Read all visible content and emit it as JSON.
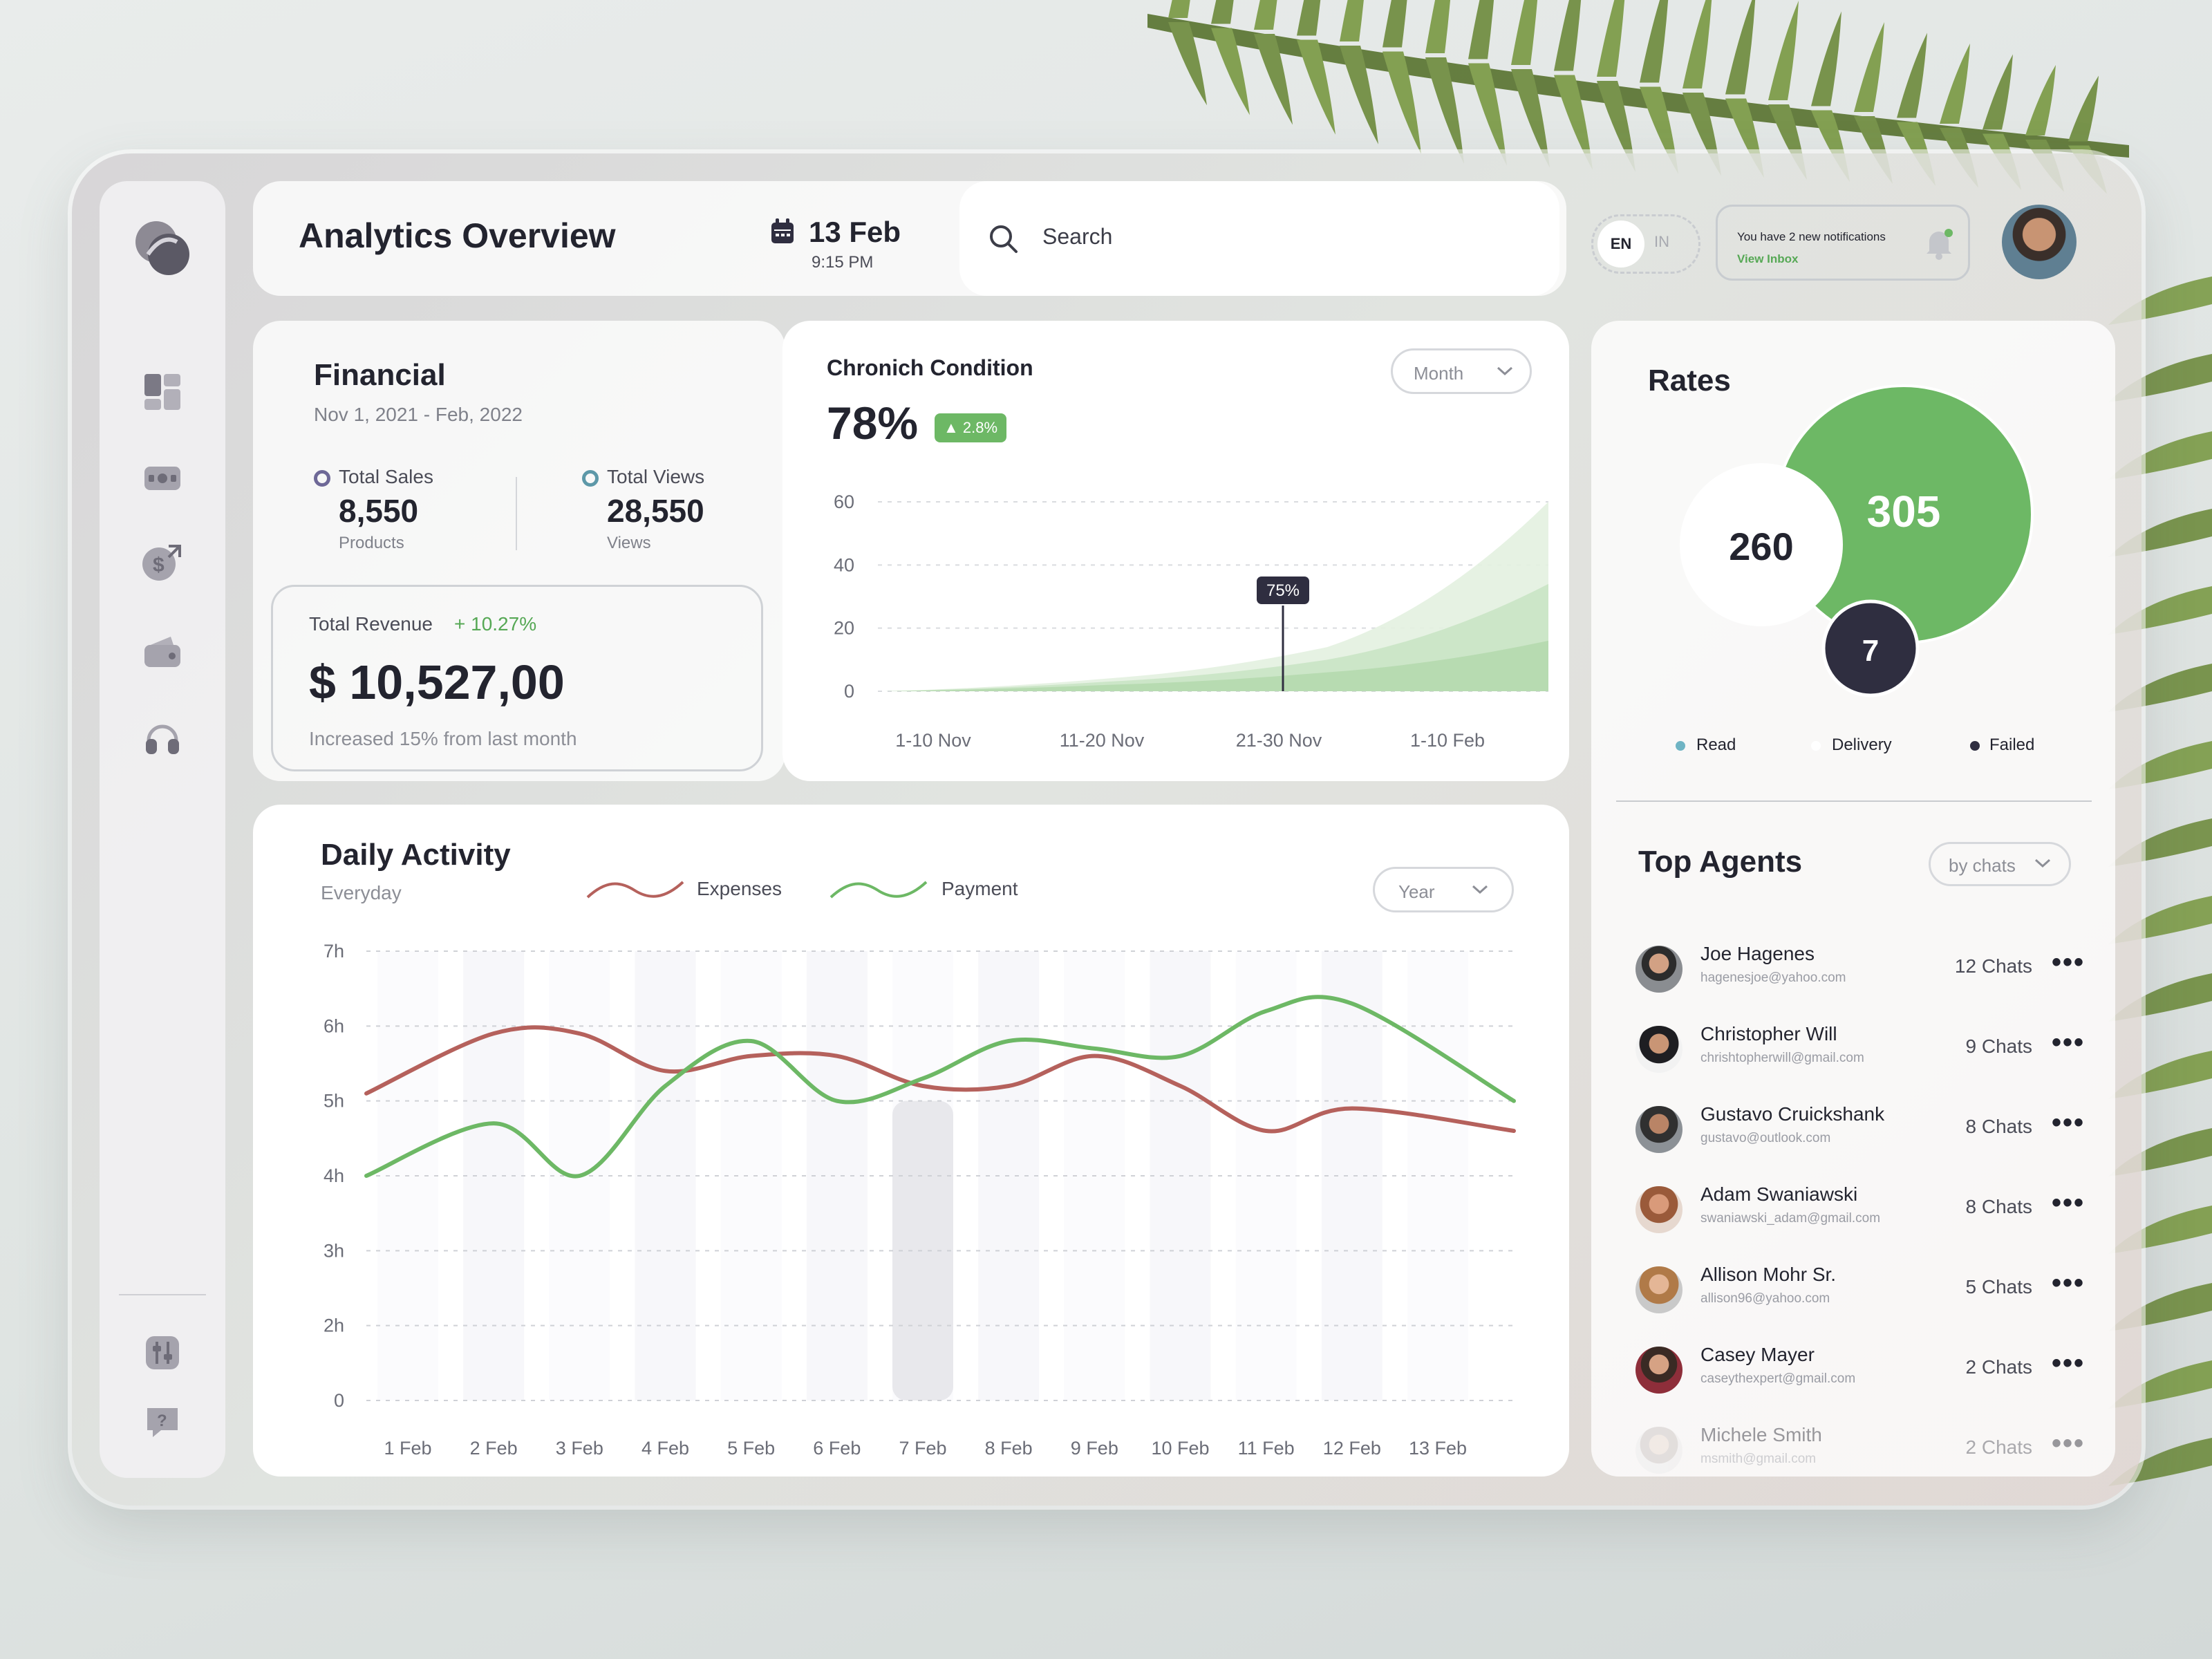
{
  "header": {
    "title": "Analytics Overview",
    "date": "13 Feb",
    "time": "9:15 PM",
    "search_placeholder": "Search",
    "lang_active": "EN",
    "lang_inactive": "IN",
    "notification_text": "You have 2 new notifications",
    "notification_link": "View Inbox"
  },
  "sidebar": {
    "items": [
      {
        "icon": "dashboard-icon"
      },
      {
        "icon": "wallet-cash-icon"
      },
      {
        "icon": "dollar-transfer-icon"
      },
      {
        "icon": "purse-icon"
      },
      {
        "icon": "headphones-icon"
      },
      {
        "icon": "settings-sliders-icon"
      },
      {
        "icon": "help-icon"
      }
    ]
  },
  "financial": {
    "title": "Financial",
    "period": "Nov 1, 2021 - Feb, 2022",
    "total_sales_label": "Total Sales",
    "total_sales_value": "8,550",
    "total_sales_unit": "Products",
    "total_views_label": "Total Views",
    "total_views_value": "28,550",
    "total_views_unit": "Views",
    "revenue_label": "Total Revenue",
    "revenue_delta": "+ 10.27%",
    "revenue_value": "$ 10,527,00",
    "revenue_note": "Increased 15% from last month"
  },
  "chronic": {
    "title": "Chronich Condition",
    "value": "78%",
    "badge": "▲ 2.8%",
    "dropdown": "Month",
    "tooltip": "75%"
  },
  "rates": {
    "title": "Rates",
    "bubbles": {
      "green": "305",
      "white": "260",
      "dark": "7"
    },
    "legend": [
      "Read",
      "Delivery",
      "Failed"
    ]
  },
  "agents": {
    "title": "Top Agents",
    "filter": "by chats",
    "list": [
      {
        "name": "Joe Hagenes",
        "email": "hagenesjoe@yahoo.com",
        "chats": "12 Chats"
      },
      {
        "name": "Christopher Will",
        "email": "chrishtopherwill@gmail.com",
        "chats": "9 Chats"
      },
      {
        "name": "Gustavo Cruickshank",
        "email": "gustavo@outlook.com",
        "chats": "8 Chats"
      },
      {
        "name": "Adam Swaniawski",
        "email": "swaniawski_adam@gmail.com",
        "chats": "8 Chats"
      },
      {
        "name": "Allison Mohr Sr.",
        "email": "allison96@yahoo.com",
        "chats": "5 Chats"
      },
      {
        "name": "Casey Mayer",
        "email": "caseythexpert@gmail.com",
        "chats": "2 Chats"
      },
      {
        "name": "Michele Smith",
        "email": "msmith@gmail.com",
        "chats": "2 Chats"
      }
    ],
    "more_glyph": "•••"
  },
  "daily": {
    "title": "Daily Activity",
    "subtitle": "Everyday",
    "dropdown": "Year",
    "legend_expenses": "Expenses",
    "legend_payment": "Payment"
  },
  "colors": {
    "green": "#6db865",
    "red": "#b5615c",
    "dark": "#2f2e40",
    "accent_text": "#56a855"
  },
  "chart_data": [
    {
      "type": "area",
      "categories": [
        "1-10 Nov",
        "11-20 Nov",
        "21-30 Nov",
        "1-10 Feb"
      ],
      "yticks": [
        "0",
        "20",
        "40",
        "60"
      ],
      "ylim": [
        0,
        60
      ],
      "series": [
        {
          "values": [
            0,
            4,
            14,
            60
          ]
        },
        {
          "values": [
            0,
            3,
            10,
            34
          ]
        },
        {
          "values": [
            0,
            2,
            6,
            16
          ]
        }
      ],
      "highlight": {
        "category": "21-30 Nov",
        "label": "75%"
      },
      "grid": true
    },
    {
      "type": "line",
      "x": [
        "1 Feb",
        "2 Feb",
        "3 Feb",
        "4 Feb",
        "5 Feb",
        "6 Feb",
        "7 Feb",
        "8 Feb",
        "9 Feb",
        "10 Feb",
        "11 Feb",
        "12 Feb",
        "13 Feb"
      ],
      "yticks": [
        "0",
        "2h",
        "3h",
        "4h",
        "5h",
        "6h",
        "7h"
      ],
      "ylim": [
        1,
        7
      ],
      "series": [
        {
          "name": "Expenses",
          "values": [
            5.1,
            5.9,
            5.9,
            5.4,
            5.6,
            5.6,
            5.2,
            5.2,
            5.6,
            5.2,
            4.6,
            4.9,
            4.6
          ]
        },
        {
          "name": "Payment",
          "values": [
            4.0,
            4.7,
            4.0,
            5.2,
            5.8,
            5.0,
            5.3,
            5.8,
            5.7,
            5.6,
            6.2,
            6.3,
            5.0
          ]
        }
      ],
      "highlight_category": "7 Feb",
      "grid": true
    }
  ]
}
